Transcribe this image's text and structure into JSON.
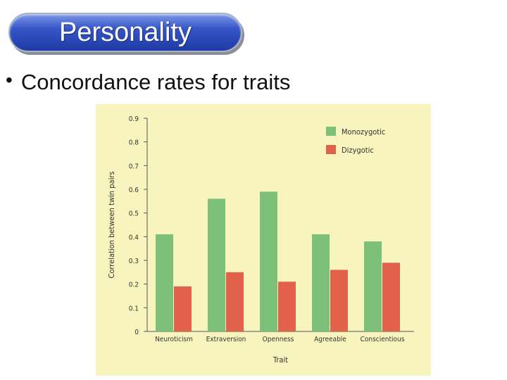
{
  "slide": {
    "title": "Personality",
    "bullet": "Concordance rates for traits"
  },
  "colors": {
    "title_bg": "#2f4fc0",
    "chart_bg": "#f7f5bd",
    "monozygotic": "#7cc07a",
    "dizygotic": "#e2614a"
  },
  "chart_data": {
    "type": "bar",
    "title": "",
    "xlabel": "Trait",
    "ylabel": "Correlation between twin pairs",
    "ylim": [
      0,
      0.9
    ],
    "yticks": [
      "0",
      "0.1",
      "0.2",
      "0.3",
      "0.4",
      "0.5",
      "0.6",
      "0.7",
      "0.8",
      "0.9"
    ],
    "categories": [
      "Neuroticism",
      "Extraversion",
      "Openness",
      "Agreeable",
      "Conscientious"
    ],
    "series": [
      {
        "name": "Monozygotic",
        "values": [
          0.41,
          0.56,
          0.59,
          0.41,
          0.38
        ]
      },
      {
        "name": "Dizygotic",
        "values": [
          0.19,
          0.25,
          0.21,
          0.26,
          0.29
        ]
      }
    ],
    "legend_position": "top-right",
    "grid": false
  }
}
